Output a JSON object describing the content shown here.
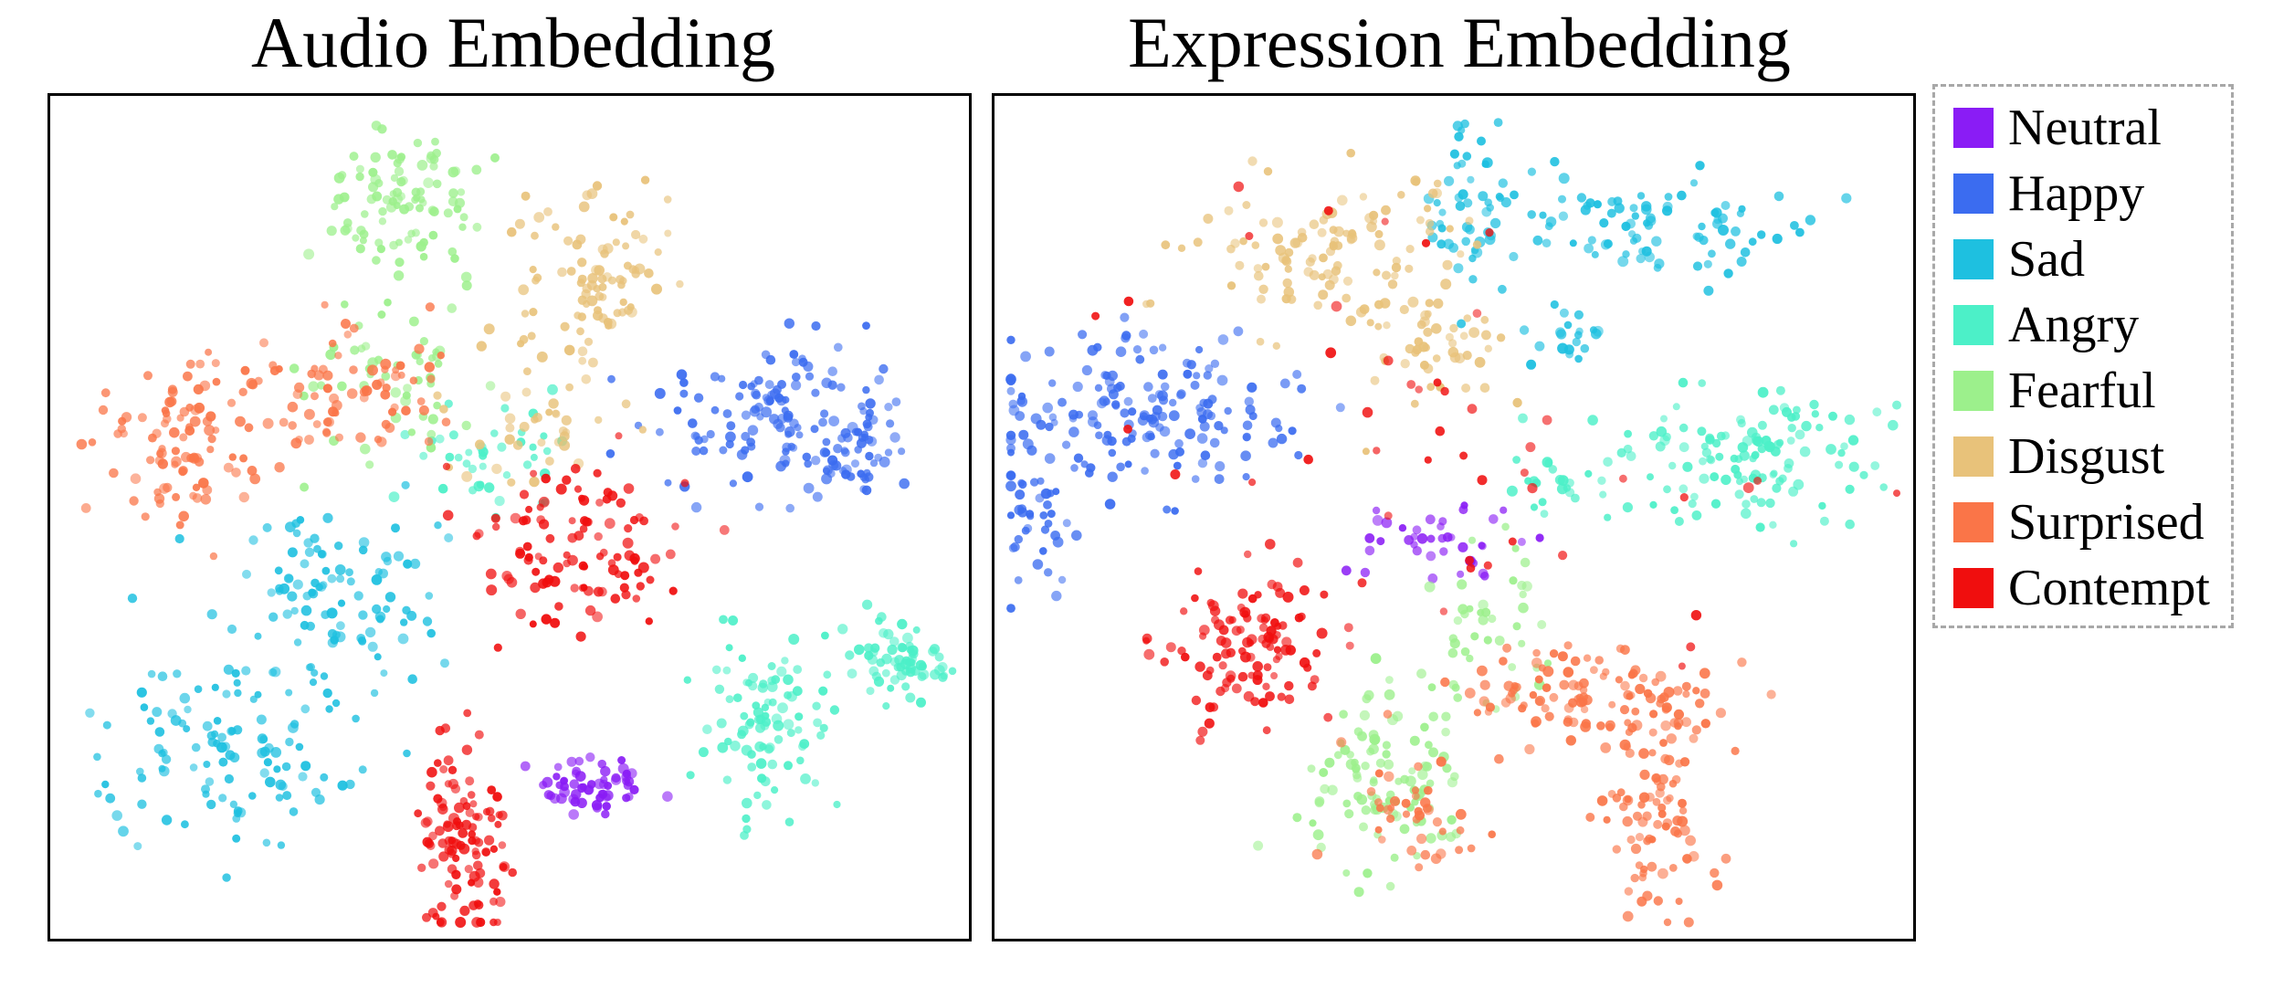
{
  "chart_data": [
    {
      "type": "scatter",
      "title": "Audio Embedding",
      "xlabel": "",
      "ylabel": "",
      "grid": false,
      "xlim": [
        0,
        100
      ],
      "ylim": [
        0,
        100
      ],
      "series": [
        {
          "name": "Neutral",
          "clusters": [
            {
              "cx": 59.5,
              "cy": 17.0,
              "sx": 3.0,
              "sy": 2.0,
              "n": 60
            }
          ]
        },
        {
          "name": "Happy",
          "clusters": [
            {
              "cx": 80.0,
              "cy": 62.0,
              "sx": 7.5,
              "sy": 5.0,
              "n": 130
            },
            {
              "cx": 90.0,
              "cy": 58.0,
              "sx": 3.0,
              "sy": 3.0,
              "n": 40
            }
          ]
        },
        {
          "name": "Sad",
          "clusters": [
            {
              "cx": 30.0,
              "cy": 40.0,
              "sx": 6.0,
              "sy": 5.0,
              "n": 100
            },
            {
              "cx": 18.0,
              "cy": 22.0,
              "sx": 7.0,
              "sy": 6.0,
              "n": 120
            }
          ]
        },
        {
          "name": "Angry",
          "clusters": [
            {
              "cx": 94.0,
              "cy": 32.0,
              "sx": 3.5,
              "sy": 3.0,
              "n": 70
            },
            {
              "cx": 79.0,
              "cy": 24.0,
              "sx": 3.5,
              "sy": 6.0,
              "n": 90
            },
            {
              "cx": 48.0,
              "cy": 58.0,
              "sx": 6.0,
              "sy": 3.5,
              "n": 40
            }
          ]
        },
        {
          "name": "Fearful",
          "clusters": [
            {
              "cx": 38.0,
              "cy": 88.0,
              "sx": 5.0,
              "sy": 5.0,
              "n": 100
            },
            {
              "cx": 37.0,
              "cy": 68.0,
              "sx": 5.0,
              "sy": 6.0,
              "n": 50
            }
          ]
        },
        {
          "name": "Disgust",
          "clusters": [
            {
              "cx": 60.0,
              "cy": 80.0,
              "sx": 4.0,
              "sy": 6.0,
              "n": 90
            },
            {
              "cx": 53.0,
              "cy": 62.0,
              "sx": 5.0,
              "sy": 5.0,
              "n": 40
            }
          ]
        },
        {
          "name": "Surprised",
          "clusters": [
            {
              "cx": 13.0,
              "cy": 60.0,
              "sx": 5.0,
              "sy": 5.0,
              "n": 100
            },
            {
              "cx": 32.0,
              "cy": 66.0,
              "sx": 6.0,
              "sy": 4.0,
              "n": 70
            }
          ]
        },
        {
          "name": "Contempt",
          "clusters": [
            {
              "cx": 45.0,
              "cy": 10.0,
              "sx": 2.5,
              "sy": 5.5,
              "n": 110
            },
            {
              "cx": 57.0,
              "cy": 47.0,
              "sx": 7.0,
              "sy": 5.0,
              "n": 110
            }
          ]
        }
      ]
    },
    {
      "type": "scatter",
      "title": "Expression Embedding",
      "xlabel": "",
      "ylabel": "",
      "grid": false,
      "xlim": [
        0,
        100
      ],
      "ylim": [
        0,
        100
      ],
      "series": [
        {
          "name": "Neutral",
          "clusters": [
            {
              "cx": 48.0,
              "cy": 47.0,
              "sx": 5.0,
              "sy": 3.0,
              "n": 40
            }
          ]
        },
        {
          "name": "Happy",
          "clusters": [
            {
              "cx": 14.0,
              "cy": 63.0,
              "sx": 9.0,
              "sy": 5.0,
              "n": 170
            },
            {
              "cx": 3.0,
              "cy": 50.0,
              "sx": 2.5,
              "sy": 5.0,
              "n": 40
            }
          ]
        },
        {
          "name": "Sad",
          "clusters": [
            {
              "cx": 73.0,
              "cy": 86.0,
              "sx": 9.0,
              "sy": 3.0,
              "n": 90
            },
            {
              "cx": 52.0,
              "cy": 88.0,
              "sx": 3.0,
              "sy": 6.0,
              "n": 50
            },
            {
              "cx": 63.0,
              "cy": 73.0,
              "sx": 2.0,
              "sy": 2.0,
              "n": 20
            }
          ]
        },
        {
          "name": "Angry",
          "clusters": [
            {
              "cx": 85.0,
              "cy": 57.0,
              "sx": 8.0,
              "sy": 4.0,
              "n": 120
            },
            {
              "cx": 63.0,
              "cy": 55.0,
              "sx": 5.0,
              "sy": 3.0,
              "n": 30
            }
          ]
        },
        {
          "name": "Fearful",
          "clusters": [
            {
              "cx": 43.0,
              "cy": 18.0,
              "sx": 4.5,
              "sy": 6.0,
              "n": 110
            },
            {
              "cx": 54.0,
              "cy": 36.0,
              "sx": 4.0,
              "sy": 5.0,
              "n": 40
            }
          ]
        },
        {
          "name": "Disgust",
          "clusters": [
            {
              "cx": 38.0,
              "cy": 83.0,
              "sx": 7.0,
              "sy": 5.0,
              "n": 120
            },
            {
              "cx": 48.0,
              "cy": 70.0,
              "sx": 4.0,
              "sy": 4.0,
              "n": 40
            }
          ]
        },
        {
          "name": "Surprised",
          "clusters": [
            {
              "cx": 65.0,
              "cy": 28.0,
              "sx": 8.0,
              "sy": 3.0,
              "n": 110
            },
            {
              "cx": 73.0,
              "cy": 13.0,
              "sx": 3.5,
              "sy": 7.0,
              "n": 90
            },
            {
              "cx": 45.0,
              "cy": 14.0,
              "sx": 4.0,
              "sy": 4.0,
              "n": 40
            }
          ]
        },
        {
          "name": "Contempt",
          "clusters": [
            {
              "cx": 27.0,
              "cy": 34.0,
              "sx": 4.5,
              "sy": 5.0,
              "n": 110
            },
            {
              "cx": 50.0,
              "cy": 60.0,
              "sx": 20.0,
              "sy": 15.0,
              "n": 50
            }
          ]
        }
      ]
    }
  ],
  "legend": {
    "placement": "right",
    "items": [
      {
        "label": "Neutral",
        "color": "#8a1cf5"
      },
      {
        "label": "Happy",
        "color": "#3b6cf0"
      },
      {
        "label": "Sad",
        "color": "#1ec0e0"
      },
      {
        "label": "Angry",
        "color": "#4cf0c8"
      },
      {
        "label": "Fearful",
        "color": "#9cf08c"
      },
      {
        "label": "Disgust",
        "color": "#e8c27a"
      },
      {
        "label": "Surprised",
        "color": "#fa7548"
      },
      {
        "label": "Contempt",
        "color": "#f00e0e"
      }
    ]
  }
}
